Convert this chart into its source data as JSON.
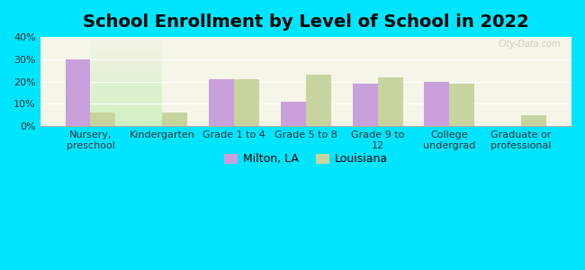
{
  "title": "School Enrollment by Level of School in 2022",
  "categories": [
    "Nursery,\npreschool",
    "Kindergarten",
    "Grade 1 to 4",
    "Grade 5 to 8",
    "Grade 9 to\n12",
    "College\nundergrad",
    "Graduate or\nprofessional"
  ],
  "milton_values": [
    30,
    0,
    21,
    11,
    19,
    20,
    0
  ],
  "louisiana_values": [
    6,
    6,
    21,
    23,
    22,
    19,
    5
  ],
  "milton_color": "#c9a0dc",
  "louisiana_color": "#c8d4a0",
  "background_outer": "#00e5ff",
  "background_inner_top": "#f5f5e8",
  "background_inner_bottom": "#d0f0c0",
  "ylim": [
    0,
    40
  ],
  "yticks": [
    0,
    10,
    20,
    30,
    40
  ],
  "ylabel_format": "{}%",
  "legend_labels": [
    "Milton, LA",
    "Louisiana"
  ],
  "bar_width": 0.35,
  "title_fontsize": 14,
  "tick_fontsize": 8,
  "legend_fontsize": 9
}
